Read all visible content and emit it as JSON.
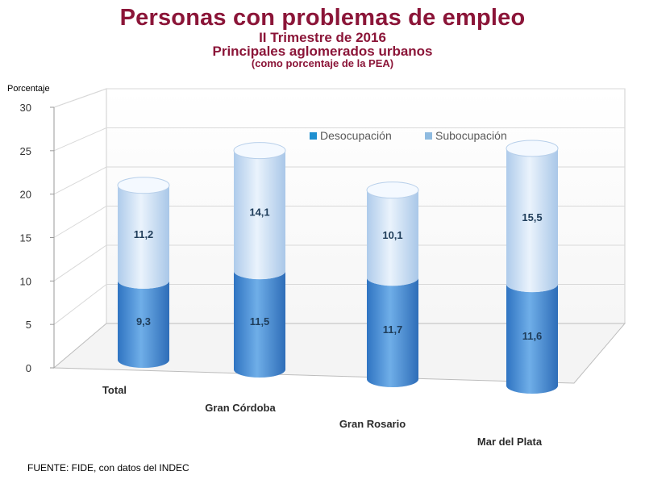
{
  "header": {
    "title": "Personas con problemas de empleo",
    "subtitle1": "II Trimestre de 2016",
    "subtitle2": "Principales aglomerados urbanos",
    "subtitle3": "(como porcentaje de la PEA)"
  },
  "chart_data": {
    "type": "bar",
    "stacked": true,
    "style": "3d-cylinder",
    "categories": [
      "Total",
      "Gran Córdoba",
      "Gran Rosario",
      "Mar del Plata"
    ],
    "series": [
      {
        "name": "Desocupación",
        "values": [
          9.3,
          11.5,
          11.7,
          11.6
        ],
        "labels": [
          "9,3",
          "11,5",
          "11,7",
          "11,6"
        ],
        "color": "#4a8fd6"
      },
      {
        "name": "Subocupación",
        "values": [
          11.2,
          14.1,
          10.1,
          15.5
        ],
        "labels": [
          "11,2",
          "14,1",
          "10,1",
          "15,5"
        ],
        "color": "#c6dcf2"
      }
    ],
    "ylabel": "Porcentaje",
    "ylim": [
      0,
      30
    ],
    "yticks": [
      "0",
      "5",
      "10",
      "15",
      "20",
      "25",
      "30"
    ],
    "legend": "top-right"
  },
  "footer": {
    "source": "FUENTE: FIDE, con datos del INDEC"
  }
}
